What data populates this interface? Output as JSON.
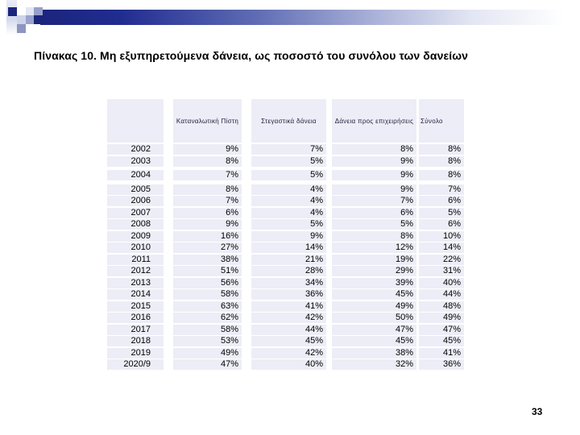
{
  "slide": {
    "title": "Πίνακας 10. Μη εξυπηρετούμενα δάνεια, ως ποσοστό του συνόλου των δανείων",
    "page_number": "33"
  },
  "colors": {
    "accent_navy": "#1b257d",
    "table_cell_bg": "#ededf7",
    "deco_mid_lavender": "#9aa3ce",
    "deco_light_lavender": "#cdd3e9"
  },
  "table": {
    "headers": [
      "",
      "Καταναλωτική Πίστη",
      "Στεγαστικά δάνεια",
      "Δάνεια προς επιχειρήσεις",
      "Σύνολο"
    ],
    "row_groups": [
      {
        "rows": [
          {
            "year": "2002",
            "values": [
              "9%",
              "7%",
              "8%",
              "8%"
            ]
          },
          {
            "year": "2003",
            "values": [
              "8%",
              "5%",
              "9%",
              "8%"
            ]
          }
        ]
      },
      {
        "rows": [
          {
            "year": "2004",
            "values": [
              "7%",
              "5%",
              "9%",
              "8%"
            ]
          }
        ]
      },
      {
        "rows": [
          {
            "year": "2005",
            "values": [
              "8%",
              "4%",
              "9%",
              "7%"
            ]
          },
          {
            "year": "2006",
            "values": [
              "7%",
              "4%",
              "7%",
              "6%"
            ]
          },
          {
            "year": "2007",
            "values": [
              "6%",
              "4%",
              "6%",
              "5%"
            ]
          },
          {
            "year": "2008",
            "values": [
              "9%",
              "5%",
              "5%",
              "6%"
            ]
          },
          {
            "year": "2009",
            "values": [
              "16%",
              "9%",
              "8%",
              "10%"
            ]
          },
          {
            "year": "2010",
            "values": [
              "27%",
              "14%",
              "12%",
              "14%"
            ]
          },
          {
            "year": "2011",
            "values": [
              "38%",
              "21%",
              "19%",
              "22%"
            ]
          },
          {
            "year": "2012",
            "values": [
              "51%",
              "28%",
              "29%",
              "31%"
            ]
          },
          {
            "year": "2013",
            "values": [
              "56%",
              "34%",
              "39%",
              "40%"
            ]
          },
          {
            "year": "2014",
            "values": [
              "58%",
              "36%",
              "45%",
              "44%"
            ]
          },
          {
            "year": "2015",
            "values": [
              "63%",
              "41%",
              "49%",
              "48%"
            ]
          },
          {
            "year": "2016",
            "values": [
              "62%",
              "42%",
              "50%",
              "49%"
            ]
          },
          {
            "year": "2017",
            "values": [
              "58%",
              "44%",
              "47%",
              "47%"
            ]
          },
          {
            "year": "2018",
            "values": [
              "53%",
              "45%",
              "45%",
              "45%"
            ]
          },
          {
            "year": "2019",
            "values": [
              "49%",
              "42%",
              "38%",
              "41%"
            ]
          },
          {
            "year": "2020/9",
            "values": [
              "47%",
              "40%",
              "32%",
              "36%"
            ]
          }
        ]
      }
    ]
  }
}
